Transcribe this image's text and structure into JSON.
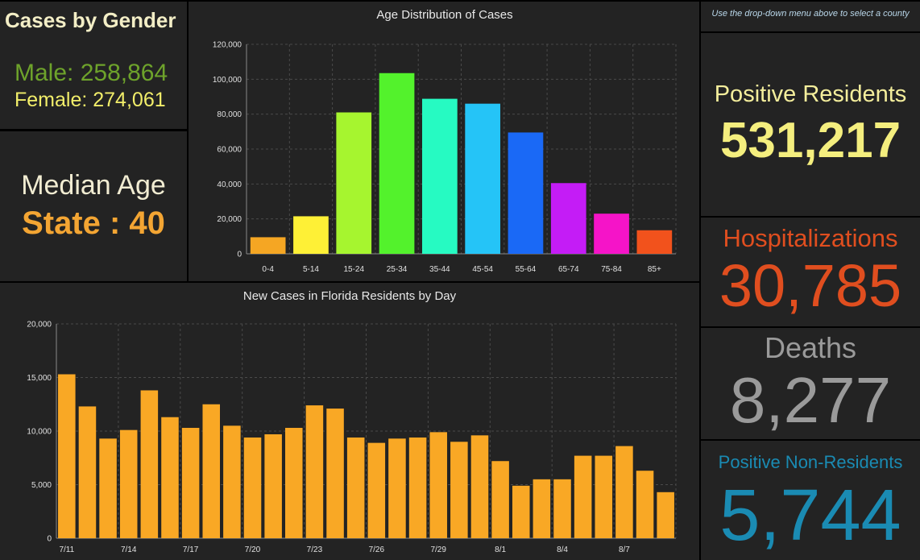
{
  "gender": {
    "title": "Cases by Gender",
    "male": "Male: 258,864",
    "female": "Female: 274,061"
  },
  "median": {
    "label": "Median Age",
    "value": "State : 40"
  },
  "note": "Use the drop-down menu above to select a county",
  "stats": {
    "positive_residents_label": "Positive Residents",
    "positive_residents_value": "531,217",
    "hospitalizations_label": "Hospitalizations",
    "hospitalizations_value": "30,785",
    "deaths_label": "Deaths",
    "deaths_value": "8,277",
    "nonresidents_label": "Positive Non-Residents",
    "nonresidents_value": "5,744"
  },
  "colors": {
    "daily_bar": "#f9a825"
  },
  "chart_data": [
    {
      "type": "bar",
      "title": "Age Distribution of Cases",
      "categories": [
        "0-4",
        "5-14",
        "15-24",
        "25-34",
        "35-44",
        "45-54",
        "55-64",
        "65-74",
        "75-84",
        "85+"
      ],
      "values": [
        9500,
        21500,
        81000,
        103500,
        88800,
        86000,
        69500,
        40500,
        23000,
        13500
      ],
      "colors": [
        "#f5a623",
        "#fef036",
        "#a6f52f",
        "#53f22c",
        "#26fac2",
        "#25c4f7",
        "#1a69f6",
        "#c41cf6",
        "#f514c8",
        "#f2521c"
      ],
      "yticks": [
        0,
        20000,
        40000,
        60000,
        80000,
        100000,
        120000
      ],
      "ytick_labels": [
        "0",
        "20,000",
        "40,000",
        "60,000",
        "80,000",
        "100,000",
        "120,000"
      ],
      "ylim": [
        0,
        120000
      ],
      "grid": true
    },
    {
      "type": "bar",
      "title": "New Cases in Florida Residents by Day",
      "x": [
        "7/11",
        "7/12",
        "7/13",
        "7/14",
        "7/15",
        "7/16",
        "7/17",
        "7/18",
        "7/19",
        "7/20",
        "7/21",
        "7/22",
        "7/23",
        "7/24",
        "7/25",
        "7/26",
        "7/27",
        "7/28",
        "7/29",
        "7/30",
        "7/31",
        "8/1",
        "8/2",
        "8/3",
        "8/4",
        "8/5",
        "8/6",
        "8/7",
        "8/8",
        "8/9"
      ],
      "values": [
        15300,
        12300,
        9300,
        10100,
        13800,
        11300,
        10300,
        12500,
        10500,
        9400,
        9700,
        10300,
        12400,
        12100,
        9400,
        8900,
        9300,
        9400,
        9900,
        9000,
        9600,
        7200,
        4900,
        5500,
        5500,
        7700,
        7700,
        8600,
        6300,
        4300
      ],
      "x_tick_labels": [
        "7/11",
        "7/14",
        "7/17",
        "7/20",
        "7/23",
        "7/26",
        "7/29",
        "8/1",
        "8/4",
        "8/7"
      ],
      "yticks": [
        0,
        5000,
        10000,
        15000,
        20000
      ],
      "ytick_labels": [
        "0",
        "5,000",
        "10,000",
        "15,000",
        "20,000"
      ],
      "ylim": [
        0,
        20000
      ],
      "grid": true
    }
  ]
}
